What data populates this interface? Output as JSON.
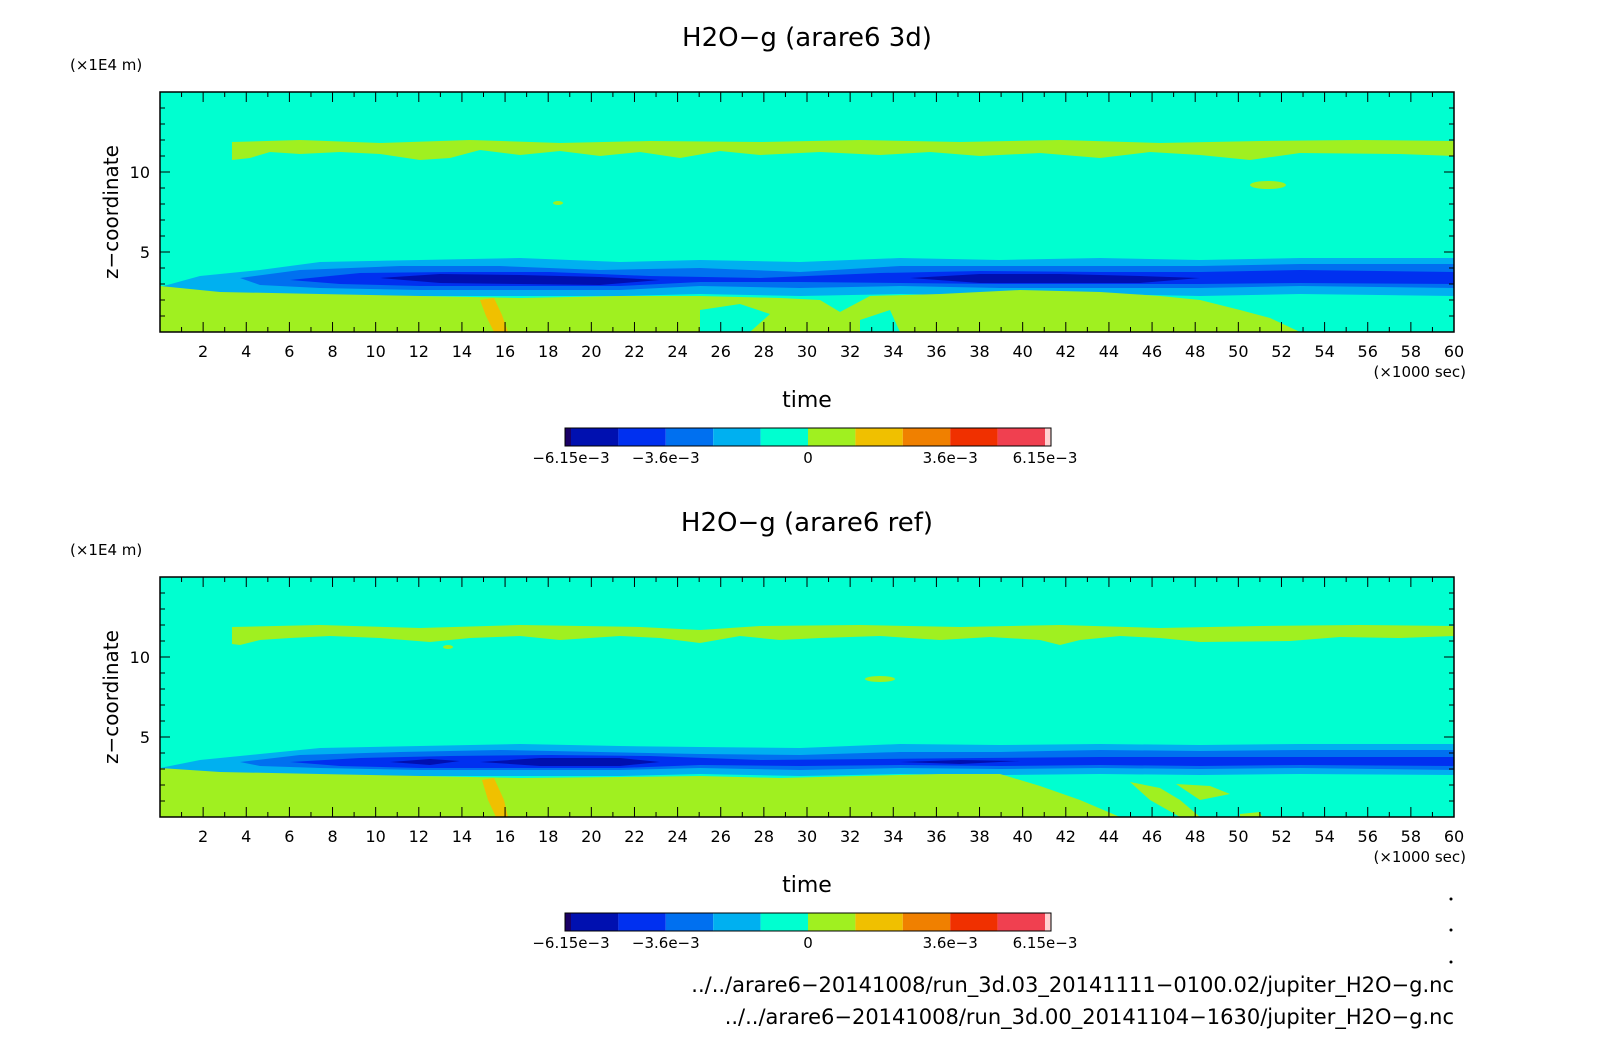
{
  "chart_data": [
    {
      "type": "heatmap",
      "title": "H2O−g (arare6 3d)",
      "xlabel": "time",
      "ylabel": "z−coordinate",
      "x_unit": "(×1000 sec)",
      "y_unit": "(×1E4 m)",
      "xlim": [
        0,
        60
      ],
      "ylim": [
        0,
        15
      ],
      "x_ticks": [
        "2",
        "4",
        "6",
        "8",
        "10",
        "12",
        "14",
        "16",
        "18",
        "20",
        "22",
        "24",
        "26",
        "28",
        "30",
        "32",
        "34",
        "36",
        "38",
        "40",
        "42",
        "44",
        "46",
        "48",
        "50",
        "52",
        "54",
        "56",
        "58",
        "60"
      ],
      "y_ticks": [
        "5",
        "10"
      ],
      "colorbar": {
        "colors": [
          "#1a0066",
          "#0010b0",
          "#0030f0",
          "#0070f0",
          "#00b0f0",
          "#00ffd0",
          "#a0f020",
          "#f0c000",
          "#f08000",
          "#f03000",
          "#f04050",
          "#ffd0d0"
        ],
        "tick_labels": [
          "−6.15e−3",
          "−3.6e−3",
          "0",
          "3.6e−3",
          "6.15e−3"
        ]
      },
      "regions": [
        {
          "level": "positive_low",
          "band": [
            0.0,
            3.0
          ],
          "x_range": [
            0,
            55
          ],
          "description_hidden": true
        },
        {
          "level": "positive_low",
          "band": [
            11.0,
            12.0
          ],
          "x_range": [
            3.3,
            60
          ]
        },
        {
          "level": "negative_mid",
          "band": [
            3.0,
            4.5
          ],
          "x_range": [
            2,
            60
          ]
        },
        {
          "level": "negative_strong",
          "band": [
            3.2,
            4.0
          ],
          "x_range": [
            6,
            60
          ]
        }
      ]
    },
    {
      "type": "heatmap",
      "title": "H2O−g (arare6 ref)",
      "xlabel": "time",
      "ylabel": "z−coordinate",
      "x_unit": "(×1000 sec)",
      "y_unit": "(×1E4 m)",
      "xlim": [
        0,
        60
      ],
      "ylim": [
        0,
        15
      ],
      "x_ticks": [
        "2",
        "4",
        "6",
        "8",
        "10",
        "12",
        "14",
        "16",
        "18",
        "20",
        "22",
        "24",
        "26",
        "28",
        "30",
        "32",
        "34",
        "36",
        "38",
        "40",
        "42",
        "44",
        "46",
        "48",
        "50",
        "52",
        "54",
        "56",
        "58",
        "60"
      ],
      "y_ticks": [
        "5",
        "10"
      ],
      "colorbar": {
        "colors": [
          "#1a0066",
          "#0010b0",
          "#0030f0",
          "#0070f0",
          "#00b0f0",
          "#00ffd0",
          "#a0f020",
          "#f0c000",
          "#f08000",
          "#f03000",
          "#f04050",
          "#ffd0d0"
        ],
        "tick_labels": [
          "−6.15e−3",
          "−3.6e−3",
          "0",
          "3.6e−3",
          "6.15e−3"
        ]
      },
      "regions": [
        {
          "level": "positive_low",
          "band": [
            0.0,
            3.0
          ],
          "x_range": [
            0,
            48
          ]
        },
        {
          "level": "positive_low",
          "band": [
            11.0,
            12.0
          ],
          "x_range": [
            3.3,
            60
          ]
        },
        {
          "level": "negative_mid",
          "band": [
            3.0,
            4.5
          ],
          "x_range": [
            2,
            60
          ]
        },
        {
          "level": "negative_strong",
          "band": [
            3.2,
            4.0
          ],
          "x_range": [
            6,
            60
          ]
        }
      ]
    }
  ],
  "footer": {
    "path1": "../../arare6−20141008/run_3d.03_20141111−0100.02/jupiter_H2O−g.nc",
    "path2": "../../arare6−20141008/run_3d.00_20141104−1630/jupiter_H2O−g.nc"
  }
}
